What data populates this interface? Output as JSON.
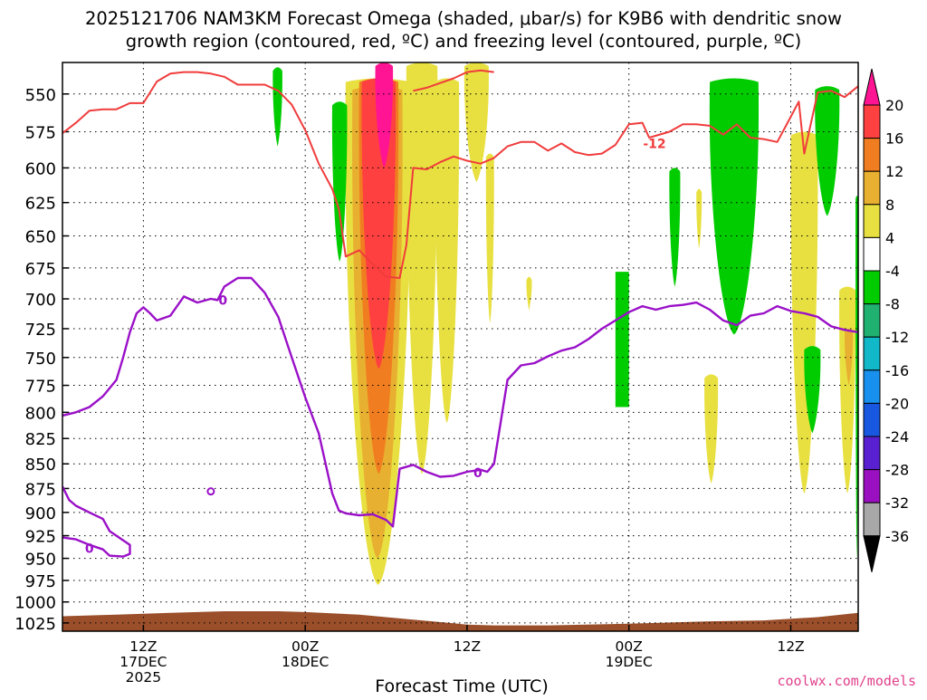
{
  "chart_data": {
    "type": "heatmap",
    "title_line1": "2025121706 NAM3KM Forecast Omega (shaded, μbar/s) for K9B6 with dendritic snow",
    "title_line2": "growth region (contoured, red, ºC) and freezing level (contoured, purple, ºC)",
    "xlabel": "Forecast Time (UTC)",
    "credit": "coolwx.com/models",
    "y_axis": {
      "scale": "pressure (inverted, log)",
      "range_hpa": [
        530,
        1035
      ],
      "ticks": [
        "550",
        "575",
        "600",
        "625",
        "650",
        "675",
        "700",
        "725",
        "750",
        "775",
        "800",
        "825",
        "850",
        "875",
        "900",
        "925",
        "950",
        "975",
        "1000",
        "1025"
      ]
    },
    "x_axis": {
      "range_hours": [
        0,
        59
      ],
      "ticks": [
        {
          "hour": 6,
          "line1": "12Z",
          "line2": "17DEC",
          "line3": "2025"
        },
        {
          "hour": 18,
          "line1": "00Z",
          "line2": "18DEC",
          "line3": ""
        },
        {
          "hour": 30,
          "line1": "12Z",
          "line2": "",
          "line3": ""
        },
        {
          "hour": 42,
          "line1": "00Z",
          "line2": "19DEC",
          "line3": ""
        },
        {
          "hour": 54,
          "line1": "12Z",
          "line2": "",
          "line3": ""
        }
      ]
    },
    "grid": true,
    "colorbar": {
      "labels": [
        "20",
        "16",
        "12",
        "8",
        "4",
        "-4",
        "-8",
        "-12",
        "-16",
        "-20",
        "-24",
        "-28",
        "-32",
        "-36"
      ],
      "colors": [
        "#ff1493",
        "#ff4040",
        "#f07e20",
        "#e8b030",
        "#e8e040",
        "#ffffff",
        "#00cc00",
        "#20b070",
        "#10b8c8",
        "#1890ee",
        "#1858e0",
        "#5820d0",
        "#9a10c0",
        "#a8a8a8",
        "#000000"
      ]
    },
    "contour_labels": {
      "dgz": "-12",
      "freezing": "0"
    },
    "dgz_top_line": [
      [
        0,
        576
      ],
      [
        1,
        569
      ],
      [
        2,
        561
      ],
      [
        3,
        560
      ],
      [
        4,
        560
      ],
      [
        5,
        556
      ],
      [
        6,
        556
      ],
      [
        7,
        542
      ],
      [
        8,
        537
      ],
      [
        9,
        536
      ],
      [
        10,
        536
      ],
      [
        11,
        537
      ],
      [
        12,
        539
      ],
      [
        13,
        544
      ],
      [
        14,
        544
      ],
      [
        15,
        544
      ],
      [
        16,
        548
      ],
      [
        17,
        557
      ],
      [
        18,
        574
      ],
      [
        19,
        597
      ],
      [
        20,
        615
      ],
      [
        20.5,
        630
      ],
      [
        21,
        666
      ],
      [
        22,
        661
      ],
      [
        23,
        672
      ],
      [
        24,
        682
      ],
      [
        25,
        683
      ],
      [
        25.5,
        657
      ],
      [
        26,
        600
      ],
      [
        27,
        601
      ],
      [
        28,
        596
      ],
      [
        29,
        592
      ],
      [
        30,
        595
      ],
      [
        31,
        597
      ],
      [
        32,
        593
      ],
      [
        33,
        585
      ],
      [
        34,
        582
      ],
      [
        35,
        582
      ],
      [
        36,
        588
      ],
      [
        37,
        583
      ],
      [
        38,
        589
      ],
      [
        39,
        591
      ],
      [
        40,
        590
      ],
      [
        41,
        584
      ],
      [
        42,
        570
      ],
      [
        43,
        569
      ],
      [
        43.5,
        579
      ],
      [
        45,
        575
      ],
      [
        46,
        570
      ],
      [
        47,
        570
      ],
      [
        48,
        571
      ],
      [
        49,
        577
      ],
      [
        50,
        570
      ],
      [
        51,
        579
      ],
      [
        52,
        580
      ],
      [
        53,
        582
      ],
      [
        54,
        565
      ],
      [
        54.6,
        555
      ],
      [
        55,
        590
      ],
      [
        56,
        549
      ],
      [
        57,
        548
      ],
      [
        58,
        552
      ],
      [
        59,
        545
      ]
    ],
    "dgz_top_line2": [
      [
        26,
        548
      ],
      [
        27,
        546
      ],
      [
        28,
        543
      ],
      [
        29,
        540
      ],
      [
        30,
        536
      ],
      [
        31,
        535
      ],
      [
        32,
        536
      ]
    ],
    "freezing_line": [
      [
        0,
        803
      ],
      [
        1,
        800
      ],
      [
        2,
        795
      ],
      [
        3,
        785
      ],
      [
        4,
        770
      ],
      [
        4.5,
        750
      ],
      [
        5,
        728
      ],
      [
        5.5,
        712
      ],
      [
        6,
        707
      ],
      [
        6.5,
        712
      ],
      [
        7,
        718
      ],
      [
        8,
        714
      ],
      [
        9,
        698
      ],
      [
        10,
        703
      ],
      [
        11,
        700
      ],
      [
        11.5,
        701
      ],
      [
        12,
        690
      ],
      [
        13,
        683
      ],
      [
        14,
        683
      ],
      [
        15,
        695
      ],
      [
        16,
        715
      ],
      [
        17,
        750
      ],
      [
        18,
        786
      ],
      [
        19,
        820
      ],
      [
        20,
        880
      ],
      [
        20.5,
        898
      ],
      [
        21,
        901
      ],
      [
        22,
        903
      ],
      [
        23,
        902
      ],
      [
        24,
        908
      ],
      [
        24.5,
        915
      ],
      [
        25,
        855
      ],
      [
        26,
        851
      ],
      [
        27,
        858
      ],
      [
        28,
        863
      ],
      [
        29,
        862
      ],
      [
        30,
        858
      ],
      [
        31,
        856
      ],
      [
        31.5,
        858
      ],
      [
        32,
        850
      ],
      [
        33,
        770
      ],
      [
        34,
        757
      ],
      [
        35,
        755
      ],
      [
        36,
        749
      ],
      [
        37,
        744
      ],
      [
        38,
        741
      ],
      [
        39,
        734
      ],
      [
        40,
        725
      ],
      [
        41,
        718
      ],
      [
        42,
        711
      ],
      [
        43,
        706
      ],
      [
        44,
        709
      ],
      [
        45,
        706
      ],
      [
        46,
        705
      ],
      [
        47,
        703
      ],
      [
        48,
        709
      ],
      [
        49,
        718
      ],
      [
        50,
        722
      ],
      [
        51,
        714
      ],
      [
        52,
        712
      ],
      [
        53,
        706
      ],
      [
        54,
        710
      ],
      [
        55,
        712
      ],
      [
        56,
        715
      ],
      [
        57,
        723
      ],
      [
        58,
        726
      ],
      [
        59,
        728
      ]
    ],
    "freezing_line2": [
      [
        0,
        873
      ],
      [
        0.5,
        887
      ],
      [
        1,
        893
      ],
      [
        2,
        900
      ],
      [
        3,
        907
      ],
      [
        3.5,
        920
      ],
      [
        4,
        925
      ],
      [
        5,
        935
      ],
      [
        5,
        945
      ],
      [
        4.5,
        948
      ],
      [
        3.5,
        947
      ],
      [
        3,
        940
      ],
      [
        2,
        935
      ],
      [
        1,
        929
      ],
      [
        0,
        927
      ]
    ],
    "surface_hpa": [
      [
        0,
        1017
      ],
      [
        4,
        1015
      ],
      [
        8,
        1013
      ],
      [
        12,
        1011
      ],
      [
        16,
        1011
      ],
      [
        18,
        1012
      ],
      [
        22,
        1015
      ],
      [
        26,
        1021
      ],
      [
        30,
        1027
      ],
      [
        32,
        1028
      ],
      [
        36,
        1028
      ],
      [
        42,
        1026
      ],
      [
        48,
        1023
      ],
      [
        52,
        1022
      ],
      [
        56,
        1018
      ],
      [
        59,
        1013
      ]
    ],
    "omega_blobs": [
      {
        "color": "#e8e040",
        "h1": 21.0,
        "h2": 25.8,
        "top": 540,
        "bottom": 980,
        "shape": "column"
      },
      {
        "color": "#e8b030",
        "h1": 21.5,
        "h2": 25.2,
        "top": 545,
        "bottom": 950,
        "shape": "column"
      },
      {
        "color": "#f07e20",
        "h1": 22.0,
        "h2": 24.9,
        "top": 540,
        "bottom": 860,
        "shape": "column"
      },
      {
        "color": "#ff4040",
        "h1": 22.2,
        "h2": 24.7,
        "top": 540,
        "bottom": 760,
        "shape": "column"
      },
      {
        "color": "#ff1493",
        "h1": 23.2,
        "h2": 24.5,
        "top": 530,
        "bottom": 600,
        "shape": "column"
      },
      {
        "color": "#e8e040",
        "h1": 25.5,
        "h2": 27.8,
        "top": 530,
        "bottom": 860,
        "shape": "column"
      },
      {
        "color": "#e8e040",
        "h1": 27.6,
        "h2": 29.4,
        "top": 540,
        "bottom": 810,
        "shape": "column"
      },
      {
        "color": "#e8e040",
        "h1": 29.8,
        "h2": 31.6,
        "top": 530,
        "bottom": 610,
        "shape": "column"
      },
      {
        "color": "#e8e040",
        "h1": 31.4,
        "h2": 32.0,
        "top": 590,
        "bottom": 720,
        "shape": "column"
      },
      {
        "color": "#e8e040",
        "h1": 34.4,
        "h2": 34.8,
        "top": 682,
        "bottom": 710,
        "shape": "column"
      },
      {
        "color": "#e8e040",
        "h1": 47.6,
        "h2": 48.6,
        "top": 765,
        "bottom": 870,
        "shape": "column"
      },
      {
        "color": "#e8e040",
        "h1": 54.0,
        "h2": 56.0,
        "top": 575,
        "bottom": 880,
        "shape": "column"
      },
      {
        "color": "#e8e040",
        "h1": 57.6,
        "h2": 58.8,
        "top": 690,
        "bottom": 880,
        "shape": "column"
      },
      {
        "color": "#e8b030",
        "h1": 58.0,
        "h2": 58.6,
        "top": 725,
        "bottom": 775,
        "shape": "column"
      },
      {
        "color": "#e8e040",
        "h1": 47.0,
        "h2": 47.4,
        "top": 615,
        "bottom": 660,
        "shape": "column"
      },
      {
        "color": "#00cc00",
        "h1": 15.6,
        "h2": 16.3,
        "top": 533,
        "bottom": 585,
        "shape": "column"
      },
      {
        "color": "#00cc00",
        "h1": 20.0,
        "h2": 21.1,
        "top": 555,
        "bottom": 670,
        "shape": "column"
      },
      {
        "color": "#00cc00",
        "h1": 41.0,
        "h2": 42.0,
        "top": 678,
        "bottom": 795,
        "shape": "rect"
      },
      {
        "color": "#00cc00",
        "h1": 45.0,
        "h2": 45.8,
        "top": 600,
        "bottom": 690,
        "shape": "column"
      },
      {
        "color": "#00cc00",
        "h1": 48.0,
        "h2": 51.6,
        "top": 540,
        "bottom": 730,
        "shape": "column"
      },
      {
        "color": "#00cc00",
        "h1": 55.8,
        "h2": 57.6,
        "top": 545,
        "bottom": 635,
        "shape": "column"
      },
      {
        "color": "#00cc00",
        "h1": 55.0,
        "h2": 56.2,
        "top": 740,
        "bottom": 820,
        "shape": "column"
      },
      {
        "color": "#00cc00",
        "h1": 58.8,
        "h2": 59.0,
        "top": 620,
        "bottom": 950,
        "shape": "column"
      }
    ]
  }
}
